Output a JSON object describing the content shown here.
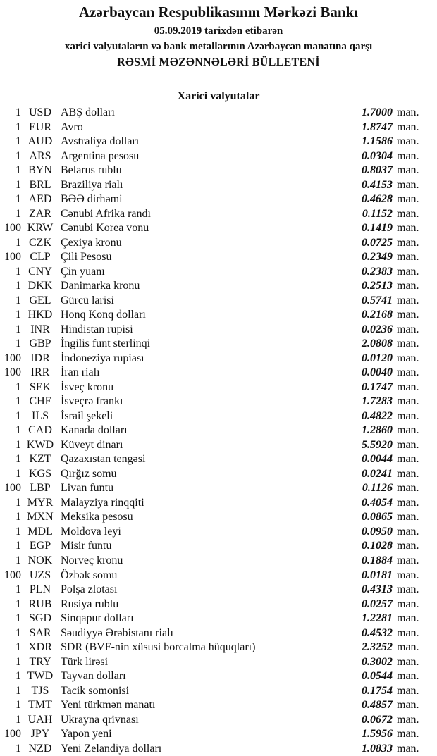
{
  "header": {
    "title": "Azərbaycan Respublikasının Mərkəzi Bankı",
    "date_line": "05.09.2019  tarixdən etibarən",
    "subtitle": "xarici valyutaların və bank metallarının Azərbaycan manatına qarşı",
    "bulletin": "RƏSMİ MƏZƏNNƏLƏRİ BÜLLETENİ"
  },
  "section_title": "Xarici valyutalar",
  "unit_label": "man.",
  "rows": [
    [
      "1",
      "USD",
      "ABŞ dolları",
      "1.7000"
    ],
    [
      "1",
      "EUR",
      "Avro",
      "1.8747"
    ],
    [
      "1",
      "AUD",
      "Avstraliya dolları",
      "1.1586"
    ],
    [
      "1",
      "ARS",
      "Argentina pesosu",
      "0.0304"
    ],
    [
      "1",
      "BYN",
      "Belarus rublu",
      "0.8037"
    ],
    [
      "1",
      "BRL",
      "Braziliya rialı",
      "0.4153"
    ],
    [
      "1",
      "AED",
      "BƏƏ dirhəmi",
      "0.4628"
    ],
    [
      "1",
      "ZAR",
      "Cənubi Afrika randı",
      "0.1152"
    ],
    [
      "100",
      "KRW",
      "Cənubi Korea vonu",
      "0.1419"
    ],
    [
      "1",
      "CZK",
      "Çexiya kronu",
      "0.0725"
    ],
    [
      "100",
      "CLP",
      "Çili Pesosu",
      "0.2349"
    ],
    [
      "1",
      "CNY",
      "Çin yuanı",
      "0.2383"
    ],
    [
      "1",
      "DKK",
      "Danimarka kronu",
      "0.2513"
    ],
    [
      "1",
      "GEL",
      "Gürcü larisi",
      "0.5741"
    ],
    [
      "1",
      "HKD",
      "Honq Konq dolları",
      "0.2168"
    ],
    [
      "1",
      "INR",
      "Hindistan rupisi",
      "0.0236"
    ],
    [
      "1",
      "GBP",
      "İngilis funt sterlinqi",
      "2.0808"
    ],
    [
      "100",
      "IDR",
      "İndoneziya rupiası",
      "0.0120"
    ],
    [
      "100",
      "IRR",
      "İran rialı",
      "0.0040"
    ],
    [
      "1",
      "SEK",
      "İsveç kronu",
      "0.1747"
    ],
    [
      "1",
      "CHF",
      "İsveçrə frankı",
      "1.7283"
    ],
    [
      "1",
      "ILS",
      "İsrail şekeli",
      "0.4822"
    ],
    [
      "1",
      "CAD",
      "Kanada dolları",
      "1.2860"
    ],
    [
      "1",
      "KWD",
      "Küveyt dinarı",
      "5.5920"
    ],
    [
      "1",
      "KZT",
      "Qazaxıstan tengəsi",
      "0.0044"
    ],
    [
      "1",
      "KGS",
      "Qırğız somu",
      "0.0241"
    ],
    [
      "100",
      "LBP",
      "Livan funtu",
      "0.1126"
    ],
    [
      "1",
      "MYR",
      "Malayziya rinqqiti",
      "0.4054"
    ],
    [
      "1",
      "MXN",
      "Meksika pesosu",
      "0.0865"
    ],
    [
      "1",
      "MDL",
      "Moldova leyi",
      "0.0950"
    ],
    [
      "1",
      "EGP",
      "Misir funtu",
      "0.1028"
    ],
    [
      "1",
      "NOK",
      "Norveç kronu",
      "0.1884"
    ],
    [
      "100",
      "UZS",
      "Özbək somu",
      "0.0181"
    ],
    [
      "1",
      "PLN",
      "Polşa zlotası",
      "0.4313"
    ],
    [
      "1",
      "RUB",
      "Rusiya rublu",
      "0.0257"
    ],
    [
      "1",
      "SGD",
      "Sinqapur dolları",
      "1.2281"
    ],
    [
      "1",
      "SAR",
      "Səudiyyə Ərəbistanı rialı",
      "0.4532"
    ],
    [
      "1",
      "XDR",
      "SDR (BVF-nin xüsusi borcalma hüquqları)",
      "2.3252"
    ],
    [
      "1",
      "TRY",
      "Türk lirəsi",
      "0.3002"
    ],
    [
      "1",
      "TWD",
      "Tayvan dolları",
      "0.0544"
    ],
    [
      "1",
      "TJS",
      "Tacik somonisi",
      "0.1754"
    ],
    [
      "1",
      "TMT",
      "Yeni türkmən manatı",
      "0.4857"
    ],
    [
      "1",
      "UAH",
      "Ukrayna qrivnası",
      "0.0672"
    ],
    [
      "100",
      "JPY",
      "Yapon yeni",
      "1.5956"
    ],
    [
      "1",
      "NZD",
      "Yeni Zelandiya dolları",
      "1.0833"
    ]
  ]
}
